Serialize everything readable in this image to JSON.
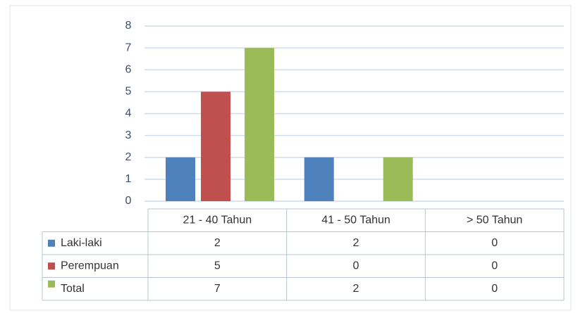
{
  "chart_data": {
    "type": "bar",
    "categories": [
      "21 - 40 Tahun",
      "41 - 50 Tahun",
      "> 50 Tahun"
    ],
    "series": [
      {
        "name": "Laki-laki",
        "color": "#4f81bd",
        "values": [
          2,
          2,
          0
        ]
      },
      {
        "name": "Perempuan",
        "color": "#c0504d",
        "values": [
          5,
          0,
          0
        ]
      },
      {
        "name": "Total",
        "color": "#9bbb59",
        "values": [
          7,
          2,
          0
        ]
      }
    ],
    "ylim": [
      0,
      8
    ],
    "yticks": [
      0,
      1,
      2,
      3,
      4,
      5,
      6,
      7,
      8
    ],
    "grid": true,
    "data_table": true
  }
}
